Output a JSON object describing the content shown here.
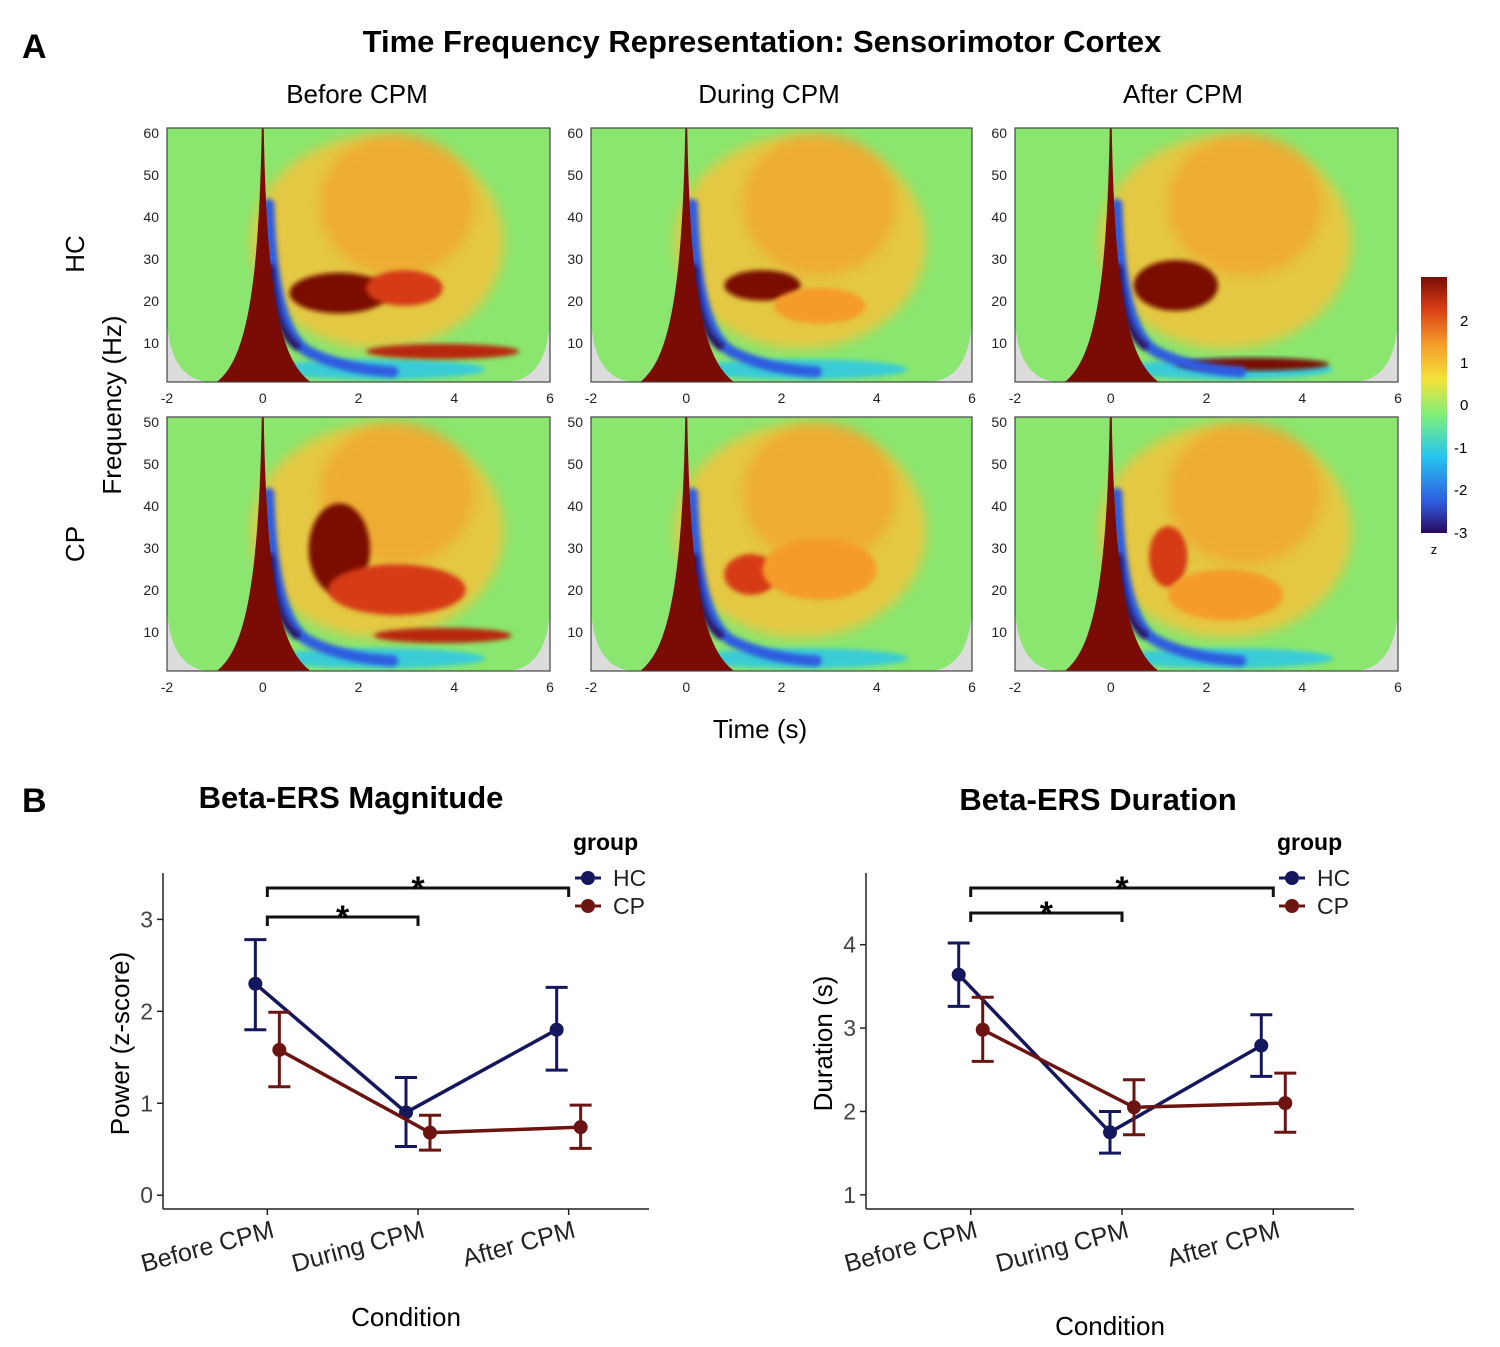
{
  "panel_a": {
    "letter": "A",
    "title": "Time Frequency Representation: Sensorimotor Cortex",
    "columns": [
      "Before CPM",
      "During CPM",
      "After CPM"
    ],
    "rows": [
      "HC",
      "CP"
    ],
    "ylabel": "Frequency (Hz)",
    "xlabel": "Time (s)",
    "x_ticks": [
      "-2",
      "0",
      "2",
      "4",
      "6"
    ],
    "y_ticks": [
      "60",
      "50",
      "40",
      "30",
      "20",
      "10"
    ],
    "colorbar": {
      "ticks": [
        "2",
        "1",
        "0",
        "-1",
        "-2",
        "-3"
      ],
      "label": "z",
      "colors": [
        "#2a0a5e",
        "#2f5be0",
        "#26c6f0",
        "#7ef07a",
        "#f4e23a",
        "#f59b2a",
        "#d63b14",
        "#7a0c05"
      ]
    }
  },
  "panel_b": {
    "letter": "B"
  },
  "chart_data": [
    {
      "type": "line",
      "title": "Beta-ERS Magnitude",
      "xlabel": "Condition",
      "ylabel": "Power (z-score)",
      "categories": [
        "Before CPM",
        "During CPM",
        "After CPM"
      ],
      "ylim": [
        -0.15,
        3.45
      ],
      "yticks": [
        "0",
        "1",
        "2",
        "3"
      ],
      "legend_title": "group",
      "legend_position": "top-right",
      "series": [
        {
          "name": "HC",
          "color": "#14175e",
          "values": [
            2.3,
            0.9,
            1.8
          ],
          "lower": [
            1.8,
            0.53,
            1.36
          ],
          "upper": [
            2.78,
            1.28,
            2.26
          ]
        },
        {
          "name": "CP",
          "color": "#6b1412",
          "values": [
            1.58,
            0.68,
            0.74
          ],
          "lower": [
            1.18,
            0.49,
            0.51
          ],
          "upper": [
            1.99,
            0.87,
            0.98
          ]
        }
      ],
      "significance": [
        {
          "from": 0,
          "to": 1,
          "label": "*"
        },
        {
          "from": 0,
          "to": 2,
          "label": "*"
        }
      ]
    },
    {
      "type": "line",
      "title": "Beta-ERS Duration",
      "xlabel": "Condition",
      "ylabel": "Duration (s)",
      "categories": [
        "Before CPM",
        "During CPM",
        "After CPM"
      ],
      "ylim": [
        0.83,
        4.8
      ],
      "yticks": [
        "1",
        "2",
        "3",
        "4"
      ],
      "legend_title": "group",
      "legend_position": "top-right",
      "series": [
        {
          "name": "HC",
          "color": "#14175e",
          "values": [
            3.64,
            1.75,
            2.79
          ],
          "lower": [
            3.26,
            1.5,
            2.42
          ],
          "upper": [
            4.02,
            2.0,
            3.16
          ]
        },
        {
          "name": "CP",
          "color": "#6b1412",
          "values": [
            2.98,
            2.05,
            2.1
          ],
          "lower": [
            2.6,
            1.72,
            1.75
          ],
          "upper": [
            3.37,
            2.38,
            2.46
          ]
        }
      ],
      "significance": [
        {
          "from": 0,
          "to": 1,
          "label": "*"
        },
        {
          "from": 0,
          "to": 2,
          "label": "*"
        }
      ]
    }
  ]
}
